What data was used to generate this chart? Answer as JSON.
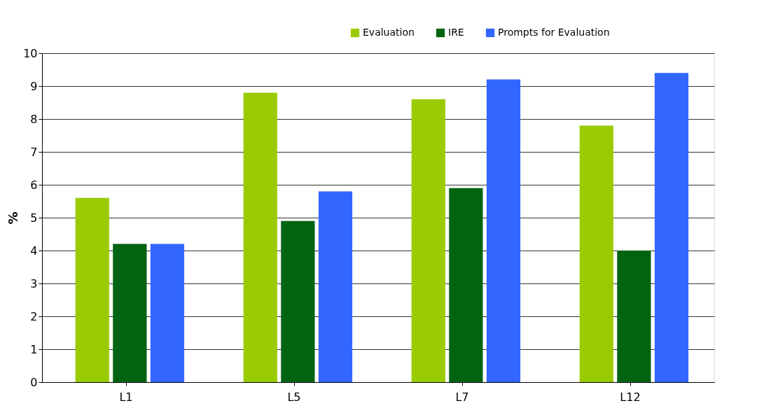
{
  "chart_data": {
    "type": "bar",
    "categories": [
      "L1",
      "L5",
      "L7",
      "L12"
    ],
    "ylabel": "%",
    "ylim": [
      0,
      10
    ],
    "yticks": [
      0,
      1,
      2,
      3,
      4,
      5,
      6,
      7,
      8,
      9,
      10
    ],
    "grid": "y",
    "legend": "top right",
    "series": [
      {
        "name": "Evaluation",
        "color": "#99cc00",
        "values": [
          5.6,
          8.8,
          8.6,
          7.8
        ]
      },
      {
        "name": "IRE",
        "color": "#006411",
        "values": [
          4.2,
          4.9,
          5.9,
          4.0
        ]
      },
      {
        "name": "Prompts for Evaluation",
        "color": "#3366ff",
        "values": [
          4.2,
          5.8,
          9.2,
          9.4
        ]
      }
    ]
  }
}
